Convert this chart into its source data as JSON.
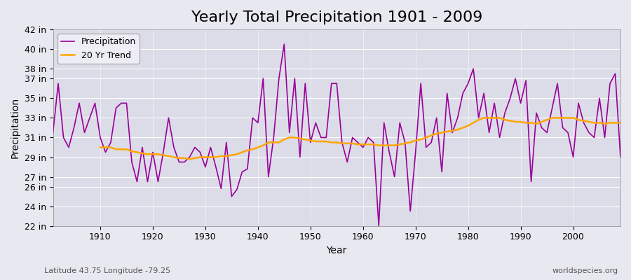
{
  "title": "Yearly Total Precipitation 1901 - 2009",
  "xlabel": "Year",
  "ylabel": "Precipitation",
  "subtitle_left": "Latitude 43.75 Longitude -79.25",
  "subtitle_right": "worldspecies.org",
  "years": [
    1901,
    1902,
    1903,
    1904,
    1905,
    1906,
    1907,
    1908,
    1909,
    1910,
    1911,
    1912,
    1913,
    1914,
    1915,
    1916,
    1917,
    1918,
    1919,
    1920,
    1921,
    1922,
    1923,
    1924,
    1925,
    1926,
    1927,
    1928,
    1929,
    1930,
    1931,
    1932,
    1933,
    1934,
    1935,
    1936,
    1937,
    1938,
    1939,
    1940,
    1941,
    1942,
    1943,
    1944,
    1945,
    1946,
    1947,
    1948,
    1949,
    1950,
    1951,
    1952,
    1953,
    1954,
    1955,
    1956,
    1957,
    1958,
    1959,
    1960,
    1961,
    1962,
    1963,
    1964,
    1965,
    1966,
    1967,
    1968,
    1969,
    1970,
    1971,
    1972,
    1973,
    1974,
    1975,
    1976,
    1977,
    1978,
    1979,
    1980,
    1981,
    1982,
    1983,
    1984,
    1985,
    1986,
    1987,
    1988,
    1989,
    1990,
    1991,
    1992,
    1993,
    1994,
    1995,
    1996,
    1997,
    1998,
    1999,
    2000,
    2001,
    2002,
    2003,
    2004,
    2005,
    2006,
    2007,
    2008,
    2009
  ],
  "precip_in": [
    31.5,
    36.5,
    31.0,
    30.0,
    32.0,
    34.5,
    31.5,
    33.0,
    34.5,
    31.0,
    29.5,
    30.5,
    34.0,
    34.5,
    34.5,
    28.5,
    26.5,
    30.0,
    26.5,
    29.5,
    26.5,
    29.5,
    33.0,
    30.0,
    28.5,
    28.5,
    29.0,
    30.0,
    29.5,
    28.0,
    30.0,
    28.0,
    25.8,
    30.5,
    25.0,
    25.7,
    27.5,
    27.8,
    33.0,
    32.5,
    37.0,
    27.0,
    31.0,
    37.0,
    40.5,
    31.5,
    37.0,
    29.0,
    36.5,
    30.5,
    32.5,
    31.0,
    31.0,
    36.5,
    36.5,
    30.5,
    28.5,
    31.0,
    30.5,
    30.0,
    31.0,
    30.5,
    22.0,
    32.5,
    29.5,
    27.0,
    32.5,
    30.5,
    23.5,
    29.5,
    36.5,
    30.0,
    30.5,
    33.0,
    27.5,
    35.5,
    31.5,
    33.0,
    35.5,
    36.5,
    38.0,
    33.0,
    35.5,
    31.5,
    34.5,
    31.0,
    33.5,
    35.0,
    37.0,
    34.5,
    36.8,
    26.5,
    33.5,
    32.0,
    31.5,
    34.0,
    36.5,
    32.0,
    31.5,
    29.0,
    34.5,
    32.5,
    31.5,
    31.0,
    35.0,
    31.0,
    36.5,
    37.5,
    29.0
  ],
  "trend_years": [
    1910,
    1911,
    1912,
    1913,
    1914,
    1915,
    1916,
    1917,
    1918,
    1919,
    1920,
    1921,
    1922,
    1923,
    1924,
    1925,
    1926,
    1927,
    1928,
    1929,
    1930,
    1931,
    1932,
    1933,
    1934,
    1935,
    1936,
    1937,
    1938,
    1939,
    1940,
    1941,
    1942,
    1943,
    1944,
    1945,
    1946,
    1947,
    1948,
    1949,
    1950,
    1951,
    1952,
    1953,
    1954,
    1955,
    1956,
    1957,
    1958,
    1959,
    1960,
    1961,
    1962,
    1963,
    1964,
    1965,
    1966,
    1967,
    1968,
    1969,
    1970,
    1971,
    1972,
    1973,
    1974,
    1975,
    1976,
    1977,
    1978,
    1979,
    1980,
    1981,
    1982,
    1983,
    1984,
    1985,
    1986,
    1987,
    1988,
    1989,
    1990,
    1991,
    1992,
    1993,
    1994,
    1995,
    1996,
    1997,
    1998,
    1999,
    2000,
    2001,
    2002,
    2003,
    2004,
    2005,
    2006,
    2007,
    2008,
    2009
  ],
  "trend_in": [
    30.0,
    30.0,
    30.0,
    29.8,
    29.8,
    29.8,
    29.6,
    29.5,
    29.4,
    29.3,
    29.3,
    29.3,
    29.2,
    29.1,
    29.0,
    28.9,
    28.9,
    28.8,
    28.9,
    29.0,
    29.0,
    29.0,
    29.0,
    29.1,
    29.1,
    29.2,
    29.3,
    29.5,
    29.7,
    29.8,
    30.0,
    30.2,
    30.5,
    30.5,
    30.5,
    30.8,
    31.0,
    31.0,
    30.9,
    30.8,
    30.7,
    30.6,
    30.6,
    30.6,
    30.5,
    30.5,
    30.4,
    30.4,
    30.4,
    30.3,
    30.3,
    30.3,
    30.3,
    30.2,
    30.2,
    30.2,
    30.2,
    30.3,
    30.4,
    30.5,
    30.7,
    30.8,
    31.0,
    31.2,
    31.4,
    31.5,
    31.6,
    31.7,
    31.8,
    32.0,
    32.2,
    32.5,
    32.8,
    33.0,
    33.0,
    33.0,
    33.0,
    32.8,
    32.7,
    32.6,
    32.6,
    32.5,
    32.5,
    32.4,
    32.6,
    32.8,
    33.0,
    33.0,
    33.0,
    33.0,
    33.0,
    32.8,
    32.7,
    32.6,
    32.5,
    32.5,
    32.4,
    32.5,
    32.5,
    32.5
  ],
  "precip_color": "#990099",
  "trend_color": "#FFA500",
  "bg_color": "#E8E8F0",
  "plot_bg_color": "#DCDCE8",
  "grid_color": "#FFFFFF",
  "ylim": [
    22,
    42
  ],
  "yticks_in": [
    22,
    24,
    26,
    27,
    29,
    31,
    33,
    35,
    37,
    38,
    40,
    42
  ],
  "ytick_labels": [
    "22 in",
    "24 in",
    "26 in",
    "27 in",
    "29 in",
    "31 in",
    "33 in",
    "35 in",
    "37 in",
    "38 in",
    "40 in",
    "42 in"
  ],
  "xticks": [
    1910,
    1920,
    1930,
    1940,
    1950,
    1960,
    1970,
    1980,
    1990,
    2000
  ],
  "title_fontsize": 16,
  "axis_fontsize": 10,
  "tick_fontsize": 9
}
